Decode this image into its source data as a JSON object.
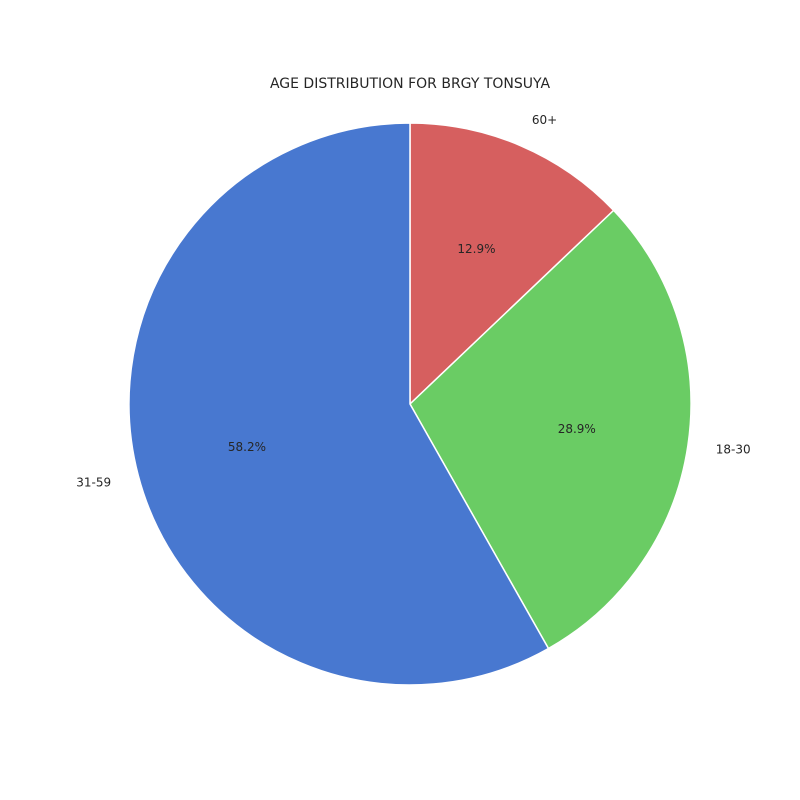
{
  "chart_data": {
    "type": "pie",
    "title": "AGE DISTRIBUTION FOR BRGY TONSUYA",
    "slices": [
      {
        "label": "60+",
        "value": 12.9,
        "pct_label": "12.9%",
        "color": "#d65f5f"
      },
      {
        "label": "18-30",
        "value": 28.9,
        "pct_label": "28.9%",
        "color": "#6acc64"
      },
      {
        "label": "31-59",
        "value": 58.2,
        "pct_label": "58.2%",
        "color": "#4878d0"
      }
    ],
    "start_angle": "top (12 o'clock)",
    "direction": "clockwise",
    "edge_color": "#ffffff"
  }
}
